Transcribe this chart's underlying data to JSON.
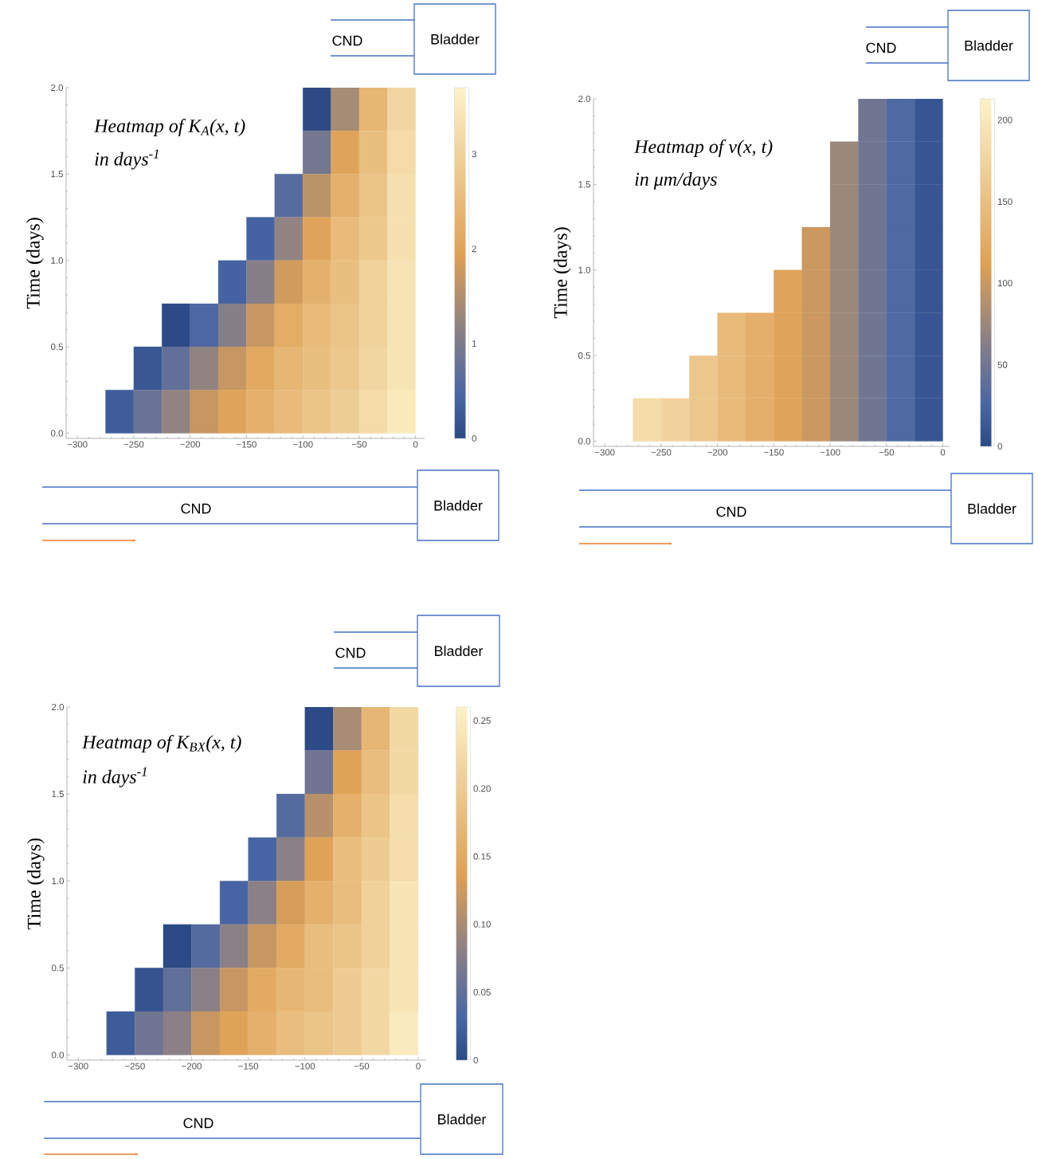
{
  "chart_data": [
    {
      "type": "heatmap",
      "ylabel": "Time (days)",
      "annotations": [
        "Heatmap of K$_{A}$(x, t)",
        "in days$^{-1}$",
        "CND",
        "Bladder",
        "CND",
        "Bladder"
      ],
      "x": [
        -287.5,
        -262.5,
        -237.5,
        -212.5,
        -187.5,
        -162.5,
        -137.5,
        -112.5,
        -87.5,
        -62.5,
        -37.5,
        -12.5
      ],
      "y": [
        1.875,
        1.625,
        1.375,
        1.125,
        0.875,
        0.625,
        0.375,
        0.125
      ],
      "cells": [
        [
          null,
          null,
          null,
          null,
          null,
          null,
          null,
          null,
          0.0,
          1.4,
          2.4,
          3.1
        ],
        [
          null,
          null,
          null,
          null,
          null,
          null,
          null,
          null,
          0.9,
          2.0,
          2.6,
          3.2
        ],
        [
          null,
          null,
          null,
          null,
          null,
          null,
          null,
          0.6,
          1.6,
          2.3,
          2.7,
          3.3
        ],
        [
          null,
          null,
          null,
          null,
          null,
          null,
          0.4,
          1.2,
          2.0,
          2.5,
          2.8,
          3.3
        ],
        [
          null,
          null,
          null,
          null,
          null,
          0.4,
          1.1,
          1.8,
          2.3,
          2.6,
          3.0,
          3.4
        ],
        [
          null,
          null,
          null,
          0.0,
          0.5,
          1.1,
          1.7,
          2.2,
          2.5,
          2.7,
          3.0,
          3.4
        ],
        [
          null,
          null,
          0.2,
          0.7,
          1.2,
          1.7,
          2.1,
          2.4,
          2.6,
          2.8,
          3.1,
          3.4
        ],
        [
          null,
          0.3,
          0.8,
          1.2,
          1.7,
          2.0,
          2.3,
          2.5,
          2.7,
          2.9,
          3.2,
          3.5
        ]
      ],
      "xlim": [
        -310,
        8
      ],
      "ylim": [
        -0.03,
        2
      ],
      "xticks": [
        {
          "value": -300,
          "label": "−300"
        },
        {
          "value": -250,
          "label": "−250"
        },
        {
          "value": -200,
          "label": "−200"
        },
        {
          "value": -150,
          "label": "−150"
        },
        {
          "value": -100,
          "label": "−100"
        },
        {
          "value": -50,
          "label": "−50"
        },
        0
      ],
      "yticks": [
        {
          "value": 0,
          "label": "0.0"
        },
        {
          "value": 0.5,
          "label": "0.5"
        },
        {
          "value": 1,
          "label": "1.0"
        },
        {
          "value": 1.5,
          "label": "1.5"
        },
        {
          "value": 2,
          "label": "2.0"
        }
      ],
      "clim": [
        0,
        3.7
      ],
      "cticks": [
        0,
        1,
        2,
        3
      ]
    },
    {
      "type": "heatmap",
      "ylabel": "Time (days)",
      "annotations": [
        "Heatmap of v(x, t)",
        "in μm/days",
        "CND",
        "Bladder",
        "CND",
        "Bladder"
      ],
      "x": [
        -287.5,
        -262.5,
        -237.5,
        -212.5,
        -187.5,
        -162.5,
        -137.5,
        -112.5,
        -87.5,
        -62.5,
        -37.5,
        -12.5
      ],
      "y": [
        1.875,
        1.625,
        1.375,
        1.125,
        0.875,
        0.625,
        0.375,
        0.125
      ],
      "cells": [
        [
          null,
          null,
          null,
          null,
          null,
          null,
          null,
          null,
          null,
          50,
          30,
          10
        ],
        [
          null,
          null,
          null,
          null,
          null,
          null,
          null,
          null,
          75,
          50,
          30,
          10
        ],
        [
          null,
          null,
          null,
          null,
          null,
          null,
          null,
          null,
          75,
          50,
          30,
          10
        ],
        [
          null,
          null,
          null,
          null,
          null,
          null,
          null,
          100,
          75,
          50,
          30,
          10
        ],
        [
          null,
          null,
          null,
          null,
          null,
          null,
          115,
          100,
          75,
          50,
          30,
          10
        ],
        [
          null,
          null,
          null,
          null,
          145,
          130,
          115,
          100,
          75,
          50,
          30,
          10
        ],
        [
          null,
          null,
          null,
          160,
          145,
          130,
          115,
          100,
          75,
          50,
          30,
          10
        ],
        [
          null,
          185,
          175,
          160,
          145,
          130,
          115,
          100,
          75,
          50,
          30,
          10
        ]
      ],
      "xlim": [
        -310,
        6
      ],
      "ylim": [
        -0.03,
        2
      ],
      "xticks": [
        {
          "value": -300,
          "label": "−300"
        },
        {
          "value": -250,
          "label": "−250"
        },
        {
          "value": -200,
          "label": "−200"
        },
        {
          "value": -150,
          "label": "−150"
        },
        {
          "value": -100,
          "label": "−100"
        },
        {
          "value": -50,
          "label": "−50"
        },
        0
      ],
      "yticks": [
        {
          "value": 0,
          "label": "0.0"
        },
        {
          "value": 0.5,
          "label": "0.5"
        },
        {
          "value": 1,
          "label": "1.0"
        },
        {
          "value": 1.5,
          "label": "1.5"
        },
        {
          "value": 2,
          "label": "2.0"
        }
      ],
      "clim": [
        0,
        213
      ],
      "cticks": [
        0,
        50,
        100,
        150,
        200
      ]
    },
    {
      "type": "heatmap",
      "ylabel": "Time (days)",
      "annotations": [
        "Heatmap of K$_{BX}$(x, t)",
        "in days$^{-1}$",
        "CND",
        "Bladder",
        "CND",
        "Bladder"
      ],
      "x": [
        -287.5,
        -262.5,
        -237.5,
        -212.5,
        -187.5,
        -162.5,
        -137.5,
        -112.5,
        -87.5,
        -62.5,
        -37.5,
        -12.5
      ],
      "y": [
        1.875,
        1.625,
        1.375,
        1.125,
        0.875,
        0.625,
        0.375,
        0.125
      ],
      "cells": [
        [
          null,
          null,
          null,
          null,
          null,
          null,
          null,
          null,
          0.0,
          0.1,
          0.17,
          0.22
        ],
        [
          null,
          null,
          null,
          null,
          null,
          null,
          null,
          null,
          0.06,
          0.14,
          0.18,
          0.22
        ],
        [
          null,
          null,
          null,
          null,
          null,
          null,
          null,
          0.04,
          0.11,
          0.16,
          0.19,
          0.23
        ],
        [
          null,
          null,
          null,
          null,
          null,
          null,
          0.03,
          0.08,
          0.14,
          0.18,
          0.2,
          0.23
        ],
        [
          null,
          null,
          null,
          null,
          null,
          0.03,
          0.08,
          0.13,
          0.16,
          0.18,
          0.21,
          0.24
        ],
        [
          null,
          null,
          null,
          0.0,
          0.04,
          0.08,
          0.12,
          0.15,
          0.18,
          0.19,
          0.21,
          0.24
        ],
        [
          null,
          null,
          0.01,
          0.05,
          0.08,
          0.12,
          0.15,
          0.17,
          0.18,
          0.2,
          0.22,
          0.24
        ],
        [
          null,
          0.02,
          0.06,
          0.08,
          0.12,
          0.14,
          0.16,
          0.18,
          0.19,
          0.2,
          0.22,
          0.25
        ]
      ],
      "xlim": [
        -310,
        7
      ],
      "ylim": [
        -0.03,
        2
      ],
      "xticks": [
        {
          "value": -300,
          "label": "−300"
        },
        {
          "value": -250,
          "label": "−250"
        },
        {
          "value": -200,
          "label": "−200"
        },
        {
          "value": -150,
          "label": "−150"
        },
        {
          "value": -100,
          "label": "−100"
        },
        {
          "value": -50,
          "label": "−50"
        },
        0
      ],
      "yticks": [
        {
          "value": 0,
          "label": "0.0"
        },
        {
          "value": 0.5,
          "label": "0.5"
        },
        {
          "value": 1,
          "label": "1.0"
        },
        {
          "value": 1.5,
          "label": "1.5"
        },
        {
          "value": 2,
          "label": "2.0"
        }
      ],
      "clim": [
        0,
        0.26
      ],
      "cticks": [
        0,
        0.05,
        {
          "value": 0.1,
          "label": "0.10"
        },
        0.15,
        {
          "value": 0.2,
          "label": "0.20"
        },
        0.25
      ]
    }
  ]
}
